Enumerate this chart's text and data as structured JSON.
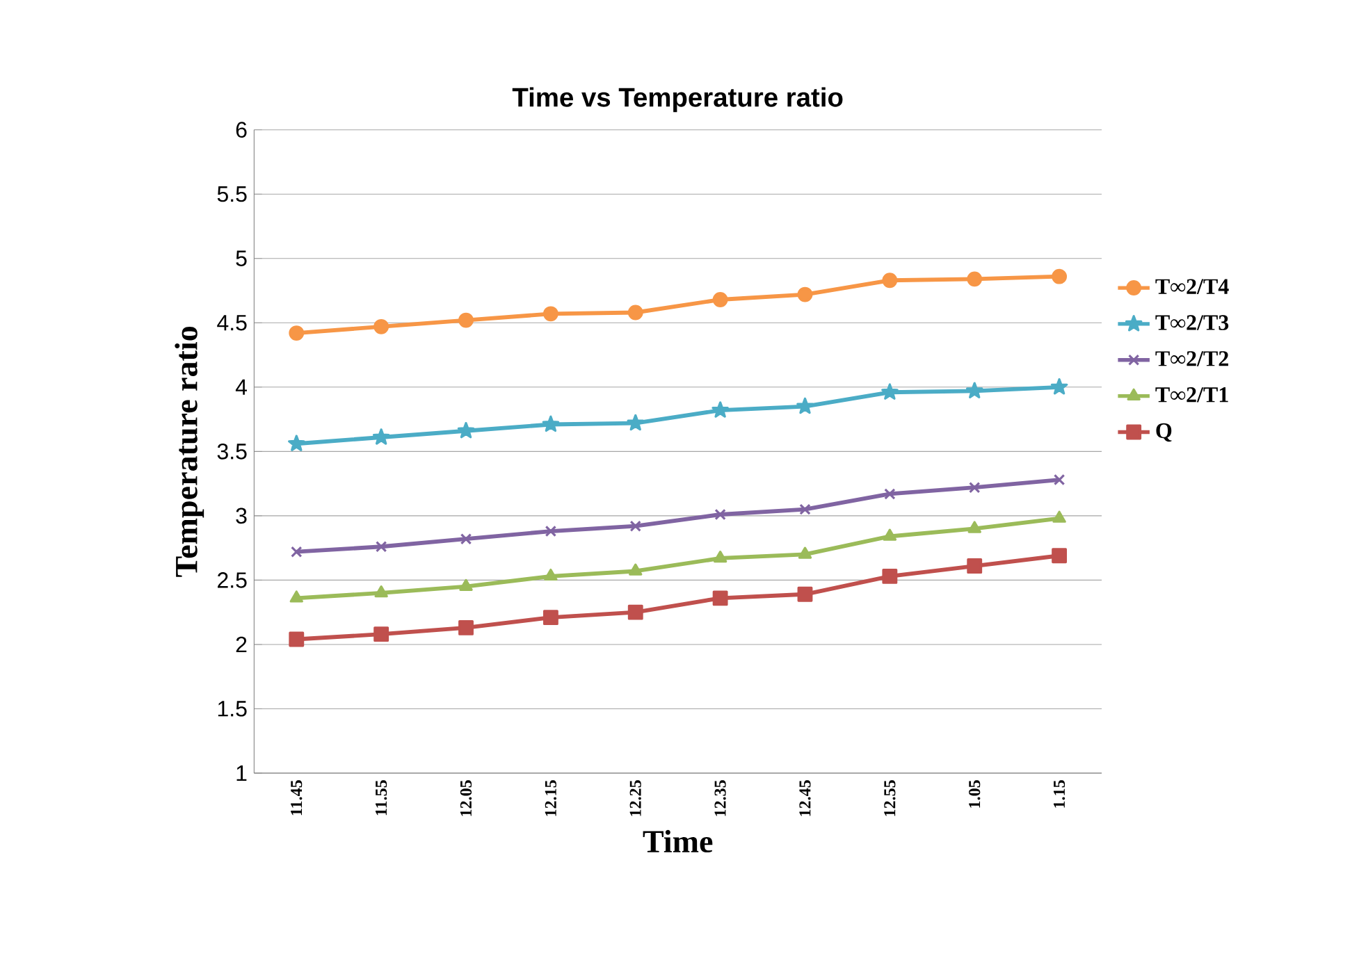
{
  "chart_data": {
    "type": "line",
    "title": "Time vs Temperature ratio",
    "xlabel": "Time",
    "ylabel": "Temperature ratio",
    "categories": [
      "11.45",
      "11.55",
      "12.05",
      "12.15",
      "12.25",
      "12.35",
      "12.45",
      "12.55",
      "1.05",
      "1.15"
    ],
    "ylim": [
      1,
      6
    ],
    "yticks": [
      1,
      1.5,
      2,
      2.5,
      3,
      3.5,
      4,
      4.5,
      5,
      5.5,
      6
    ],
    "grid": "y",
    "legend": "right",
    "series": [
      {
        "name": "T∞2/T4",
        "color": "#f79646",
        "marker": "circle",
        "values": [
          4.42,
          4.47,
          4.52,
          4.57,
          4.58,
          4.68,
          4.72,
          4.83,
          4.84,
          4.86
        ]
      },
      {
        "name": "T∞2/T3",
        "color": "#4bacc6",
        "marker": "star",
        "values": [
          3.56,
          3.61,
          3.66,
          3.71,
          3.72,
          3.82,
          3.85,
          3.96,
          3.97,
          4.0
        ]
      },
      {
        "name": "T∞2/T2",
        "color": "#8064a2",
        "marker": "cross",
        "values": [
          2.72,
          2.76,
          2.82,
          2.88,
          2.92,
          3.01,
          3.05,
          3.17,
          3.22,
          3.28
        ]
      },
      {
        "name": "T∞2/T1",
        "color": "#9bbb59",
        "marker": "triangle",
        "values": [
          2.36,
          2.4,
          2.45,
          2.53,
          2.57,
          2.67,
          2.7,
          2.84,
          2.9,
          2.98
        ]
      },
      {
        "name": "Q",
        "color": "#c0504d",
        "marker": "square",
        "values": [
          2.04,
          2.08,
          2.13,
          2.21,
          2.25,
          2.36,
          2.39,
          2.53,
          2.61,
          2.69
        ]
      }
    ]
  }
}
